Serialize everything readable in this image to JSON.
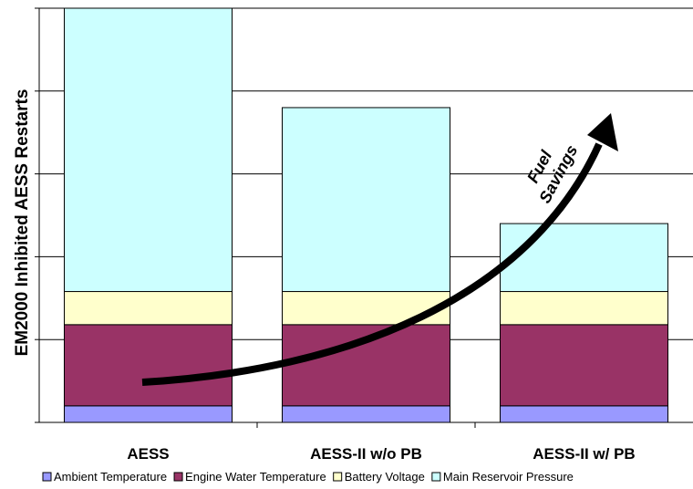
{
  "chart_data": {
    "type": "bar",
    "stacked": true,
    "title": "",
    "xlabel": "",
    "ylabel": "EM2000 Inhibited AESS Restarts",
    "categories": [
      "AESS",
      "AESS-II w/o PB",
      "AESS-II w/ PB"
    ],
    "series": [
      {
        "name": "Ambient Temperature",
        "color": "#9999ff",
        "values": [
          2,
          2,
          2
        ]
      },
      {
        "name": "Engine Water Temperature",
        "color": "#993366",
        "values": [
          9.8,
          9.8,
          9.8
        ]
      },
      {
        "name": "Battery Voltage",
        "color": "#ffffcc",
        "values": [
          4,
          4,
          4
        ]
      },
      {
        "name": "Main Reservoir Pressure",
        "color": "#ccffff",
        "values": [
          34.2,
          22.2,
          8.2
        ]
      }
    ],
    "ylim": [
      0,
      50
    ],
    "yticks": [
      0,
      10,
      20,
      30,
      40,
      50
    ],
    "y_tick_labels_shown": false,
    "grid": "horizontal",
    "legend_position": "bottom",
    "annotation": {
      "lines": [
        "Fuel",
        "Savings"
      ],
      "arrow": "curved arrow rising from left to right"
    }
  }
}
